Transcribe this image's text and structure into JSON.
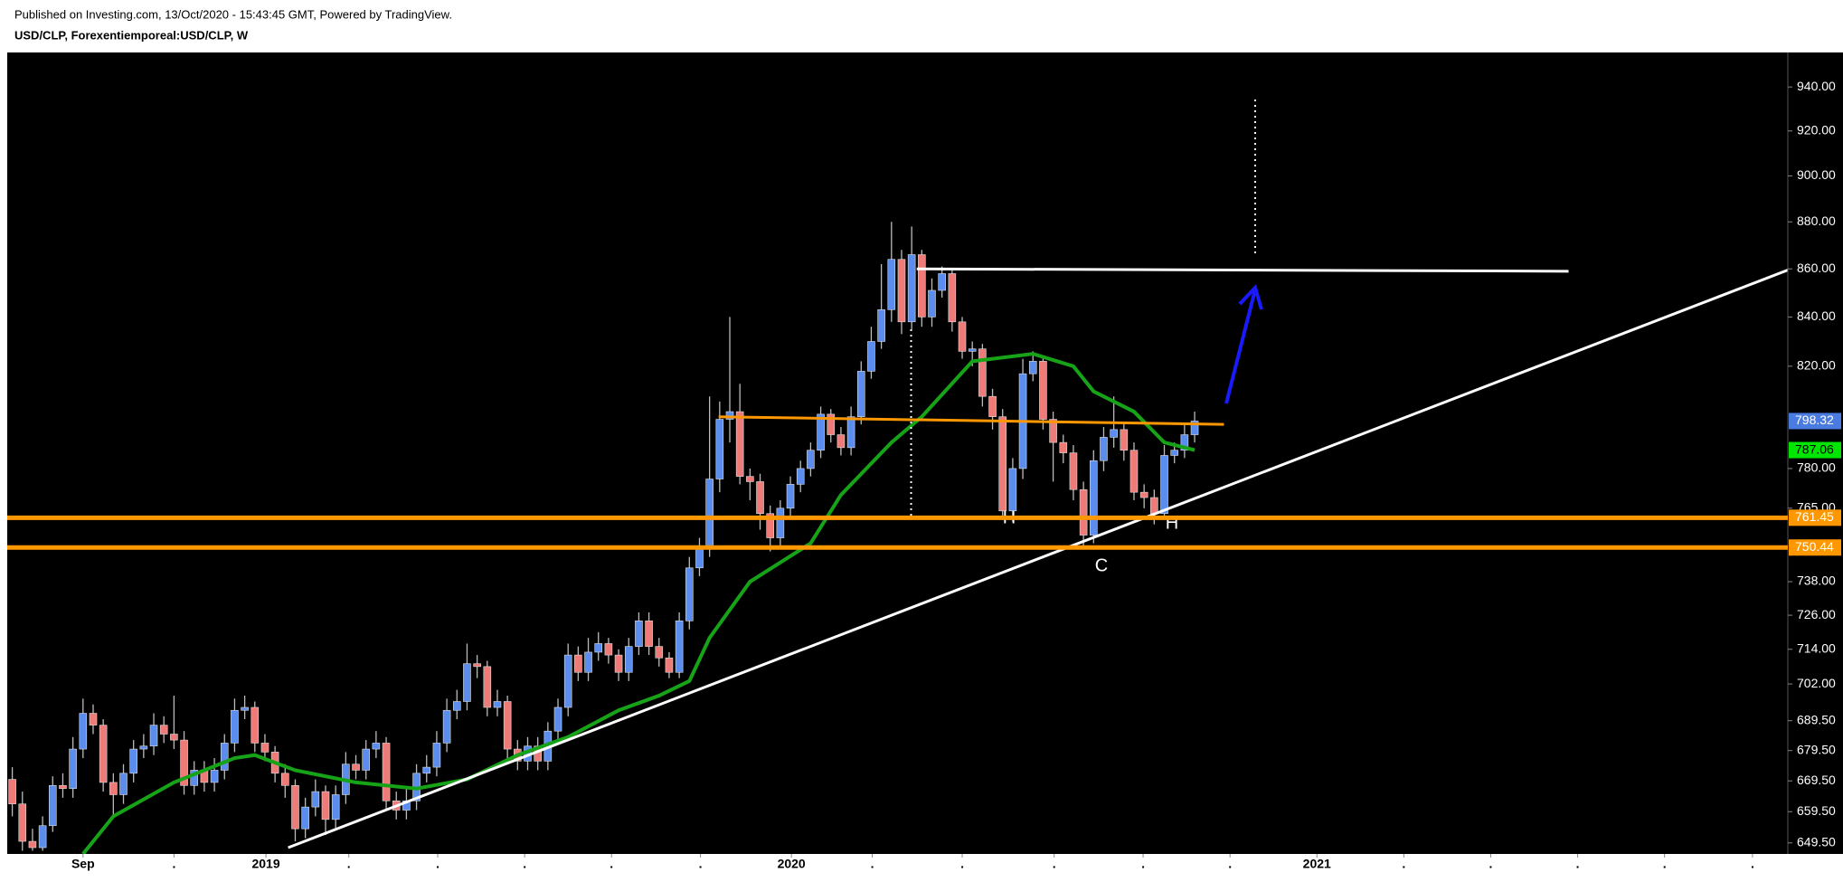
{
  "header": {
    "published": "Published on Investing.com, 13/Oct/2020 - 15:43:45 GMT, Powered by TradingView.",
    "symbol": "USD/CLP, Forexentiemporeal:USD/CLP, W"
  },
  "chart_data": {
    "type": "candlestick",
    "log_scale": true,
    "up_color": "#5b8def",
    "down_color": "#ef7b78",
    "open": [
      670,
      662,
      650,
      648,
      655,
      668,
      667,
      680,
      692,
      688,
      669,
      665,
      672,
      680,
      681,
      688,
      685,
      683,
      668,
      673,
      669,
      673,
      682,
      693,
      694,
      682,
      679,
      672,
      668,
      654,
      661,
      666,
      657,
      665,
      675,
      673,
      680,
      682,
      663,
      660,
      663,
      672,
      674,
      682,
      693,
      696,
      709,
      708,
      694,
      696,
      680,
      676,
      681,
      676,
      686,
      694,
      712,
      706,
      713,
      716,
      712,
      706,
      715,
      724,
      715,
      711,
      706,
      724,
      743,
      750,
      776,
      799,
      802,
      777,
      775,
      763,
      754,
      765,
      774,
      780,
      787,
      801,
      793,
      788,
      800,
      818,
      830,
      843,
      864,
      838,
      866,
      840,
      851,
      858,
      838,
      826,
      827,
      808,
      800,
      764,
      780,
      817,
      822,
      799,
      790,
      786,
      772,
      755,
      783,
      792,
      795,
      787,
      771,
      769,
      763,
      785,
      787,
      793
    ],
    "high": [
      674,
      666,
      654,
      658,
      671,
      672,
      684,
      697,
      695,
      690,
      672,
      675,
      683,
      685,
      692,
      691,
      698,
      686,
      676,
      676,
      677,
      685,
      697,
      698,
      696,
      685,
      681,
      675,
      670,
      664,
      670,
      668,
      668,
      679,
      678,
      683,
      686,
      684,
      666,
      667,
      675,
      678,
      686,
      697,
      700,
      716,
      712,
      710,
      700,
      698,
      683,
      684,
      684,
      689,
      697,
      716,
      715,
      718,
      720,
      718,
      714,
      718,
      727,
      727,
      718,
      713,
      727,
      747,
      754,
      808,
      806,
      840,
      813,
      780,
      778,
      766,
      768,
      777,
      783,
      790,
      804,
      803,
      796,
      804,
      822,
      836,
      862,
      880,
      868,
      878,
      868,
      856,
      861,
      860,
      840,
      830,
      829,
      811,
      803,
      784,
      823,
      826,
      824,
      802,
      793,
      789,
      775,
      787,
      796,
      808,
      798,
      790,
      774,
      772,
      789,
      790,
      797,
      802
    ],
    "low": [
      658,
      647,
      647,
      647,
      653,
      664,
      664,
      677,
      685,
      666,
      658,
      662,
      669,
      677,
      678,
      682,
      680,
      665,
      665,
      666,
      666,
      670,
      679,
      690,
      679,
      676,
      669,
      664,
      650,
      651,
      658,
      652,
      654,
      662,
      670,
      670,
      677,
      660,
      657,
      657,
      660,
      669,
      671,
      679,
      690,
      693,
      704,
      691,
      691,
      676,
      673,
      673,
      673,
      673,
      683,
      691,
      703,
      703,
      710,
      709,
      703,
      703,
      712,
      712,
      708,
      704,
      704,
      721,
      740,
      747,
      771,
      790,
      774,
      768,
      757,
      749,
      750,
      762,
      771,
      777,
      784,
      790,
      785,
      785,
      797,
      815,
      827,
      838,
      833,
      835,
      836,
      836,
      848,
      834,
      823,
      820,
      804,
      795,
      761,
      760,
      776,
      814,
      795,
      775,
      782,
      768,
      751,
      752,
      779,
      788,
      783,
      768,
      765,
      759,
      761,
      782,
      784,
      790
    ],
    "close": [
      662,
      650,
      648,
      655,
      668,
      667,
      680,
      692,
      688,
      669,
      665,
      672,
      680,
      681,
      688,
      685,
      683,
      668,
      673,
      669,
      673,
      682,
      693,
      694,
      682,
      679,
      672,
      668,
      654,
      661,
      666,
      657,
      665,
      675,
      673,
      680,
      682,
      663,
      660,
      663,
      672,
      674,
      682,
      693,
      696,
      709,
      708,
      694,
      696,
      680,
      676,
      681,
      676,
      686,
      694,
      712,
      706,
      713,
      716,
      712,
      706,
      715,
      724,
      715,
      711,
      706,
      724,
      743,
      750,
      776,
      799,
      802,
      777,
      775,
      763,
      754,
      765,
      774,
      780,
      787,
      801,
      793,
      788,
      800,
      818,
      830,
      843,
      864,
      838,
      866,
      840,
      851,
      858,
      838,
      826,
      827,
      808,
      800,
      764,
      780,
      817,
      822,
      799,
      790,
      786,
      772,
      755,
      783,
      792,
      795,
      787,
      771,
      769,
      763,
      785,
      787,
      793,
      798.32
    ],
    "last_color": "#4a7be0",
    "series": [
      {
        "color": "#17a317",
        "tag_color": "#00e600",
        "x": [
          7,
          10,
          16,
          22,
          24,
          28,
          34,
          40,
          45,
          50,
          55,
          60,
          64,
          67,
          69,
          73,
          79,
          82,
          87,
          90,
          95,
          101,
          105,
          107,
          111,
          114,
          117
        ],
        "values": [
          646,
          658,
          669,
          677,
          678,
          673,
          669,
          667,
          670,
          678,
          684,
          693,
          698,
          703,
          718,
          738,
          752,
          770,
          790,
          800,
          822,
          825,
          820,
          810,
          802,
          790,
          787.06
        ]
      }
    ],
    "levels": [
      {
        "value": 761.45,
        "color": "#ff9800"
      },
      {
        "value": 750.44,
        "color": "#ff9800"
      }
    ],
    "trendlines": [
      {
        "color": "#ff9800",
        "x": [
          69.9,
          119.9
        ],
        "values": [
          800,
          797
        ]
      },
      {
        "color": "#ffffff",
        "x": [
          89.5,
          154
        ],
        "values": [
          860,
          859
        ]
      },
      {
        "color": "#ffffff",
        "x": [
          27.3,
          175.7
        ],
        "values": [
          648,
          859.5
        ]
      }
    ],
    "annotations": [
      "H",
      "H",
      "C"
    ],
    "xlim": [
      -0.5,
      175.7
    ],
    "ylim": [
      646,
      956
    ],
    "xticks": [
      {
        "value": 7,
        "label": "Sep"
      },
      {
        "value": 16,
        "label": "."
      },
      {
        "value": 25.1,
        "label": "2019"
      },
      {
        "value": 33.3,
        "label": "."
      },
      {
        "value": 42.1,
        "label": "."
      },
      {
        "value": 50.7,
        "label": "."
      },
      {
        "value": 59.3,
        "label": "."
      },
      {
        "value": 68.1,
        "label": "."
      },
      {
        "value": 77.1,
        "label": "2020"
      },
      {
        "value": 85.1,
        "label": "."
      },
      {
        "value": 94,
        "label": "."
      },
      {
        "value": 103.1,
        "label": "."
      },
      {
        "value": 111.9,
        "label": "."
      },
      {
        "value": 120.5,
        "label": "."
      },
      {
        "value": 129.1,
        "label": "2021"
      },
      {
        "value": 137.7,
        "label": "."
      },
      {
        "value": 146.3,
        "label": "."
      },
      {
        "value": 154.9,
        "label": "."
      },
      {
        "value": 163.5,
        "label": "."
      },
      {
        "value": 172.2,
        "label": "."
      }
    ],
    "yticks": [
      {
        "value": 649.5,
        "label": "649.50"
      },
      {
        "value": 659.5,
        "label": "659.50"
      },
      {
        "value": 669.5,
        "label": "669.50"
      },
      {
        "value": 679.5,
        "label": "679.50"
      },
      {
        "value": 689.5,
        "label": "689.50"
      },
      {
        "value": 702,
        "label": "702.00"
      },
      {
        "value": 714,
        "label": "714.00"
      },
      {
        "value": 726,
        "label": "726.00"
      },
      {
        "value": 738,
        "label": "738.00"
      },
      {
        "value": 765,
        "label": "765.00"
      },
      {
        "value": 780,
        "label": "780.00"
      },
      {
        "value": 820,
        "label": "820.00"
      },
      {
        "value": 840,
        "label": "840.00"
      },
      {
        "value": 860,
        "label": "860.00"
      },
      {
        "value": 880,
        "label": "880.00"
      },
      {
        "value": 900,
        "label": "900.00"
      },
      {
        "value": 920,
        "label": "920.00"
      },
      {
        "value": 940,
        "label": "940.00"
      }
    ]
  }
}
